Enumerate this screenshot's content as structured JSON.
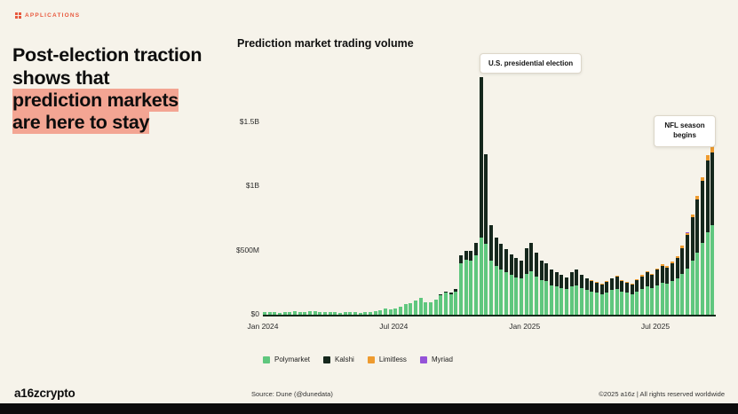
{
  "eyebrow": {
    "label": "APPLICATIONS"
  },
  "heading": {
    "pre": "Post-election traction shows that ",
    "highlight": "prediction markets are here to stay"
  },
  "colors": {
    "background": "#f6f3ea",
    "accent_coral": "#e8593e",
    "heading_highlight": "#f3a593",
    "axis": "#0f2a1a",
    "bottom_bar": "#0c0c0c"
  },
  "chart_data": {
    "type": "bar",
    "stacked": true,
    "title": "Prediction market trading volume",
    "unit": "USD millions per weekly bar",
    "n_weeks": 90,
    "x_range": "Jan 2024 to Sep 2025, weekly bars",
    "grid": false,
    "legend_position": "bottom",
    "ylim_M": [
      0,
      1850
    ],
    "y_ticks": [
      {
        "label": "$0",
        "value_M": 0
      },
      {
        "label": "$500M",
        "value_M": 500
      },
      {
        "label": "$1B",
        "value_M": 1000
      },
      {
        "label": "$1.5B",
        "value_M": 1500
      }
    ],
    "x_tick_labels": [
      {
        "label": "Jan 2024",
        "week_index": 0
      },
      {
        "label": "Jul 2024",
        "week_index": 26
      },
      {
        "label": "Jan 2025",
        "week_index": 52
      },
      {
        "label": "Jul 2025",
        "week_index": 78
      }
    ],
    "annotations": [
      {
        "text": "U.S. presidential election",
        "week_index": 43,
        "value_M": 1850
      },
      {
        "text": "NFL season begins",
        "week_index": 88,
        "value_M": 1320
      }
    ],
    "series": [
      {
        "name": "Polymarket",
        "color": "#5fc77e",
        "values": [
          18,
          22,
          20,
          16,
          20,
          24,
          26,
          20,
          22,
          26,
          28,
          24,
          20,
          22,
          18,
          16,
          20,
          24,
          18,
          16,
          18,
          22,
          28,
          35,
          45,
          40,
          50,
          65,
          80,
          90,
          110,
          130,
          100,
          95,
          120,
          150,
          170,
          160,
          180,
          400,
          430,
          420,
          460,
          600,
          550,
          420,
          380,
          350,
          330,
          310,
          290,
          280,
          320,
          340,
          300,
          270,
          260,
          230,
          220,
          210,
          200,
          220,
          230,
          210,
          190,
          180,
          170,
          160,
          175,
          190,
          200,
          180,
          170,
          160,
          180,
          200,
          220,
          210,
          230,
          250,
          240,
          260,
          280,
          320,
          360,
          420,
          480,
          560,
          640,
          700
        ]
      },
      {
        "name": "Kalshi",
        "color": "#15271c",
        "values": [
          0,
          0,
          0,
          0,
          0,
          0,
          0,
          0,
          0,
          0,
          0,
          0,
          0,
          0,
          0,
          0,
          0,
          0,
          0,
          0,
          0,
          0,
          0,
          0,
          0,
          0,
          0,
          0,
          0,
          0,
          0,
          0,
          0,
          0,
          0,
          10,
          12,
          15,
          20,
          60,
          70,
          80,
          100,
          1250,
          700,
          280,
          220,
          200,
          180,
          160,
          150,
          140,
          200,
          220,
          180,
          150,
          140,
          120,
          110,
          100,
          90,
          110,
          120,
          100,
          90,
          85,
          80,
          75,
          80,
          90,
          100,
          85,
          80,
          75,
          90,
          100,
          110,
          100,
          120,
          130,
          125,
          140,
          160,
          200,
          260,
          340,
          420,
          480,
          560,
          560
        ]
      },
      {
        "name": "Limitless",
        "color": "#ee9b2f",
        "values": [
          0,
          0,
          0,
          0,
          0,
          0,
          0,
          0,
          0,
          0,
          0,
          0,
          0,
          0,
          0,
          0,
          0,
          0,
          0,
          0,
          0,
          0,
          0,
          0,
          0,
          0,
          0,
          0,
          0,
          0,
          0,
          0,
          0,
          0,
          0,
          0,
          0,
          0,
          0,
          0,
          0,
          0,
          0,
          0,
          0,
          0,
          0,
          0,
          0,
          0,
          0,
          0,
          0,
          0,
          0,
          0,
          0,
          2,
          2,
          3,
          3,
          3,
          4,
          4,
          5,
          5,
          5,
          6,
          6,
          6,
          7,
          7,
          8,
          8,
          8,
          9,
          10,
          10,
          10,
          12,
          12,
          14,
          14,
          16,
          18,
          20,
          24,
          28,
          40,
          60
        ]
      },
      {
        "name": "Myriad",
        "color": "#9553d8",
        "values": [
          0,
          0,
          0,
          0,
          0,
          0,
          0,
          0,
          0,
          0,
          0,
          0,
          0,
          0,
          0,
          0,
          0,
          0,
          0,
          0,
          0,
          0,
          0,
          0,
          0,
          0,
          0,
          0,
          0,
          0,
          0,
          0,
          0,
          0,
          0,
          0,
          0,
          0,
          0,
          0,
          0,
          0,
          0,
          0,
          0,
          0,
          0,
          0,
          0,
          0,
          0,
          0,
          0,
          0,
          0,
          0,
          0,
          0,
          0,
          0,
          0,
          0,
          0,
          0,
          0,
          0,
          0,
          0,
          0,
          0,
          0,
          0,
          0,
          0,
          0,
          0,
          0,
          0,
          2,
          2,
          2,
          2,
          2,
          2,
          2,
          2,
          2,
          2,
          2,
          2
        ]
      }
    ]
  },
  "footer": {
    "logo": "a16zcrypto",
    "source": "Source: Dune (@dunedata)",
    "copyright": "©2025 a16z | All rights reserved worldwide"
  }
}
